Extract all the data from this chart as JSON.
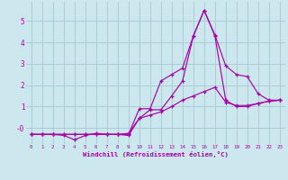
{
  "xlabel": "Windchill (Refroidissement éolien,°C)",
  "bg_color": "#cce8ee",
  "grid_color": "#aacdd6",
  "line_color": "#aa00aa",
  "xlim": [
    -0.5,
    23.5
  ],
  "ylim": [
    -0.75,
    5.9
  ],
  "xticks": [
    0,
    1,
    2,
    3,
    4,
    5,
    6,
    7,
    8,
    9,
    10,
    11,
    12,
    13,
    14,
    15,
    16,
    17,
    18,
    19,
    20,
    21,
    22,
    23
  ],
  "yticks": [
    0,
    1,
    2,
    3,
    4,
    5
  ],
  "ytick_labels": [
    "-0",
    "1",
    "2",
    "3",
    "4",
    "5"
  ],
  "line1_x": [
    0,
    1,
    2,
    3,
    4,
    5,
    6,
    7,
    8,
    9,
    10,
    11,
    12,
    13,
    14,
    15,
    16,
    17,
    18,
    19,
    20,
    21,
    22,
    23
  ],
  "line1_y": [
    -0.3,
    -0.3,
    -0.3,
    -0.3,
    -0.3,
    -0.3,
    -0.3,
    -0.3,
    -0.3,
    -0.25,
    0.45,
    0.6,
    0.75,
    1.0,
    1.3,
    1.5,
    1.7,
    1.9,
    1.2,
    1.05,
    1.05,
    1.15,
    1.25,
    1.3
  ],
  "line2_x": [
    0,
    1,
    2,
    3,
    4,
    5,
    6,
    7,
    8,
    9,
    10,
    11,
    12,
    13,
    14,
    15,
    16,
    17,
    18,
    19,
    20,
    21,
    22,
    23
  ],
  "line2_y": [
    -0.3,
    -0.3,
    -0.3,
    -0.35,
    -0.55,
    -0.35,
    -0.25,
    -0.3,
    -0.3,
    -0.35,
    0.45,
    0.85,
    0.85,
    1.5,
    2.2,
    4.3,
    5.5,
    4.3,
    1.3,
    1.0,
    1.0,
    1.15,
    1.25,
    1.3
  ],
  "line3_x": [
    0,
    1,
    2,
    3,
    4,
    5,
    6,
    7,
    8,
    9,
    10,
    11,
    12,
    13,
    14,
    15,
    16,
    17,
    18,
    19,
    20,
    21,
    22,
    23
  ],
  "line3_y": [
    -0.3,
    -0.3,
    -0.3,
    -0.3,
    -0.3,
    -0.3,
    -0.3,
    -0.3,
    -0.3,
    -0.3,
    0.9,
    0.9,
    2.2,
    2.5,
    2.8,
    4.3,
    5.5,
    4.35,
    2.9,
    2.5,
    2.4,
    1.6,
    1.3,
    1.3
  ]
}
